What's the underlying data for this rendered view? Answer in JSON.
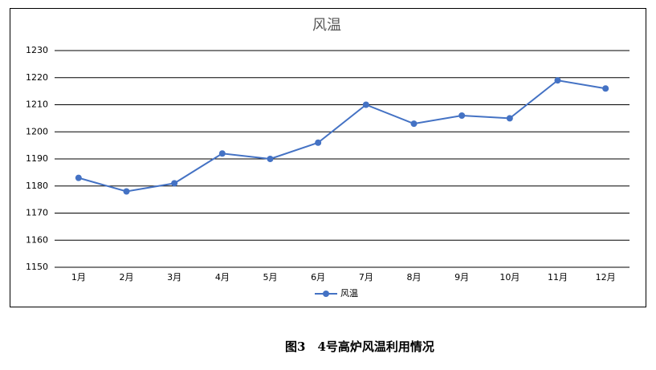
{
  "chart_data": {
    "type": "line",
    "title": "风温",
    "categories": [
      "1月",
      "2月",
      "3月",
      "4月",
      "5月",
      "6月",
      "7月",
      "8月",
      "9月",
      "10月",
      "11月",
      "12月"
    ],
    "series": [
      {
        "name": "风温",
        "color": "#4472c4",
        "values": [
          1183,
          1178,
          1181,
          1192,
          1190,
          1196,
          1210,
          1203,
          1206,
          1205,
          1219,
          1216
        ]
      }
    ],
    "ylim": [
      1150,
      1230
    ],
    "yticks": [
      1150,
      1160,
      1170,
      1180,
      1190,
      1200,
      1210,
      1220,
      1230
    ],
    "grid": true,
    "legend": "bottom"
  },
  "caption": "图3　4号高炉风温利用情况"
}
